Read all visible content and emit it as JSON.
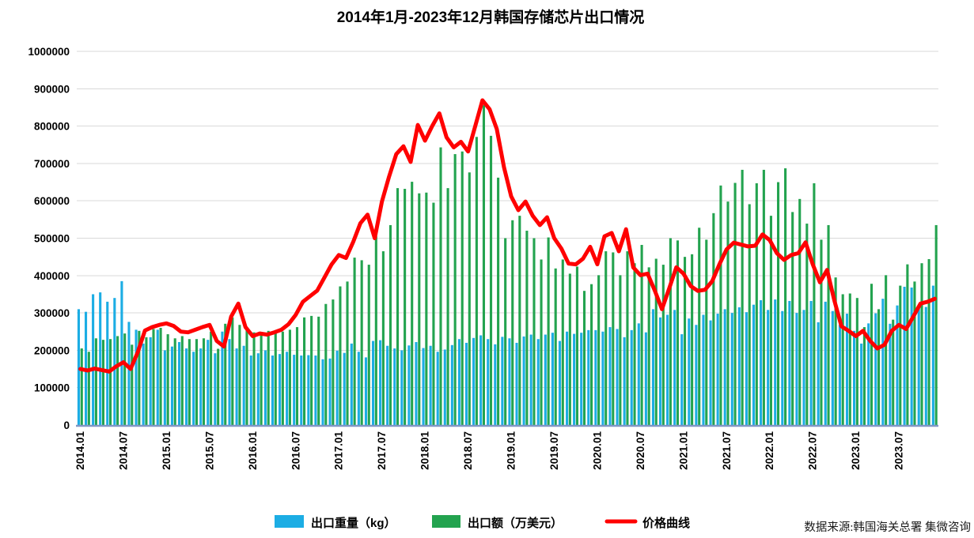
{
  "title": "2014年1月-2023年12月韩国存储芯片出口情况",
  "source": "数据来源:韩国海关总署 集微咨询",
  "legend": {
    "weight_label": "出口重量（kg）",
    "value_label": "出口额（万美元）",
    "price_label": "价格曲线"
  },
  "colors": {
    "weight_bar": "#1CADE4",
    "value_bar": "#23A34F",
    "price_line": "#FF0000",
    "axis_line": "#8096C4",
    "gridline": "#D9D9D9",
    "text": "#000000"
  },
  "y_axis": {
    "tick_labels": [
      "0",
      "100000",
      "200000",
      "300000",
      "400000",
      "500000",
      "600000",
      "700000",
      "800000",
      "900000",
      "1000000"
    ]
  },
  "x_axis": {
    "tick_labels": [
      "2014.01",
      "2014.07",
      "2015.01",
      "2015.07",
      "2016.01",
      "2016.07",
      "2017.01",
      "2017.07",
      "2018.01",
      "2018.07",
      "2019.01",
      "2019.07",
      "2020.01",
      "2020.07",
      "2021.01",
      "2021.07",
      "2022.01",
      "2022.07",
      "2023.01",
      "2023.07"
    ]
  },
  "chart_data": {
    "type": "bar+line",
    "x_start": "2014.01",
    "x_end": "2023.12",
    "months": 120,
    "ylim": [
      0,
      1000000
    ],
    "grid": true,
    "legend_position": "bottom",
    "series": [
      {
        "name": "出口重量（kg）",
        "type": "bar",
        "color": "#1CADE4",
        "values": [
          310000,
          303000,
          350000,
          355000,
          330000,
          340000,
          385000,
          276000,
          255000,
          218000,
          235000,
          255000,
          200000,
          210000,
          222000,
          205000,
          196000,
          205000,
          228000,
          192000,
          250000,
          230000,
          205000,
          212000,
          186000,
          192000,
          200000,
          186000,
          190000,
          196000,
          188000,
          186000,
          187000,
          186000,
          176000,
          178000,
          199000,
          193000,
          218000,
          196000,
          181000,
          225000,
          227000,
          212000,
          205000,
          200000,
          213000,
          222000,
          206000,
          212000,
          196000,
          202000,
          214000,
          230000,
          220000,
          233000,
          240000,
          230000,
          216000,
          236000,
          232000,
          220000,
          237000,
          242000,
          230000,
          242000,
          247000,
          225000,
          250000,
          244000,
          247000,
          254000,
          254000,
          250000,
          262000,
          257000,
          235000,
          254000,
          272000,
          248000,
          310000,
          288000,
          295000,
          308000,
          243000,
          285000,
          268000,
          295000,
          280000,
          298000,
          310000,
          300000,
          315000,
          302000,
          322000,
          334000,
          308000,
          336000,
          305000,
          332000,
          300000,
          308000,
          332000,
          275000,
          330000,
          305000,
          268000,
          298000,
          252000,
          218000,
          272000,
          299000,
          338000,
          271000,
          320000,
          370000,
          368000,
          316000,
          316000,
          373000
        ]
      },
      {
        "name": "出口额（万美元）",
        "type": "bar",
        "color": "#23A34F",
        "values": [
          205000,
          196000,
          232000,
          228000,
          230000,
          238000,
          245000,
          215000,
          252000,
          235000,
          257000,
          260000,
          243000,
          232000,
          238000,
          230000,
          230000,
          232000,
          250000,
          204000,
          271000,
          288000,
          268000,
          255000,
          248000,
          245000,
          252000,
          246000,
          250000,
          255000,
          262000,
          288000,
          292000,
          290000,
          324000,
          336000,
          371000,
          384000,
          448000,
          441000,
          429000,
          505000,
          465000,
          535000,
          634000,
          632000,
          651000,
          620000,
          622000,
          595000,
          743000,
          634000,
          725000,
          732000,
          676000,
          771000,
          856000,
          774000,
          662000,
          500000,
          548000,
          560000,
          520000,
          500000,
          443000,
          502000,
          419000,
          443000,
          405000,
          424000,
          359000,
          377000,
          401000,
          465000,
          462000,
          401000,
          465000,
          433000,
          482000,
          422000,
          445000,
          429000,
          500000,
          494000,
          450000,
          457000,
          528000,
          496000,
          567000,
          641000,
          598000,
          648000,
          683000,
          591000,
          647000,
          683000,
          560000,
          650000,
          687000,
          570000,
          605000,
          539000,
          647000,
          496000,
          535000,
          395000,
          350000,
          352000,
          340000,
          262000,
          378000,
          310000,
          401000,
          282000,
          373000,
          430000,
          384000,
          433000,
          444000,
          535000
        ]
      },
      {
        "name": "价格曲线",
        "type": "line",
        "color": "#FF0000",
        "values": [
          150000,
          146000,
          151000,
          147000,
          143000,
          157000,
          168000,
          150000,
          195000,
          253000,
          262000,
          268000,
          272000,
          265000,
          250000,
          248000,
          255000,
          262000,
          268000,
          225000,
          210000,
          290000,
          325000,
          262000,
          238000,
          245000,
          242000,
          248000,
          255000,
          270000,
          295000,
          330000,
          345000,
          360000,
          395000,
          430000,
          455000,
          447000,
          490000,
          540000,
          563000,
          500000,
          598000,
          665000,
          725000,
          746000,
          704000,
          803000,
          761000,
          800000,
          834000,
          770000,
          743000,
          758000,
          732000,
          800000,
          869000,
          845000,
          792000,
          690000,
          612000,
          575000,
          598000,
          560000,
          535000,
          556000,
          500000,
          472000,
          432000,
          430000,
          445000,
          477000,
          430000,
          505000,
          514000,
          465000,
          524000,
          422000,
          401000,
          405000,
          360000,
          310000,
          365000,
          422000,
          405000,
          372000,
          359000,
          362000,
          385000,
          430000,
          470000,
          488000,
          483000,
          478000,
          480000,
          510000,
          495000,
          460000,
          442000,
          455000,
          460000,
          489000,
          430000,
          382000,
          415000,
          334000,
          264000,
          252000,
          238000,
          252000,
          225000,
          205000,
          215000,
          252000,
          268000,
          257000,
          290000,
          325000,
          330000,
          338000
        ]
      }
    ]
  }
}
